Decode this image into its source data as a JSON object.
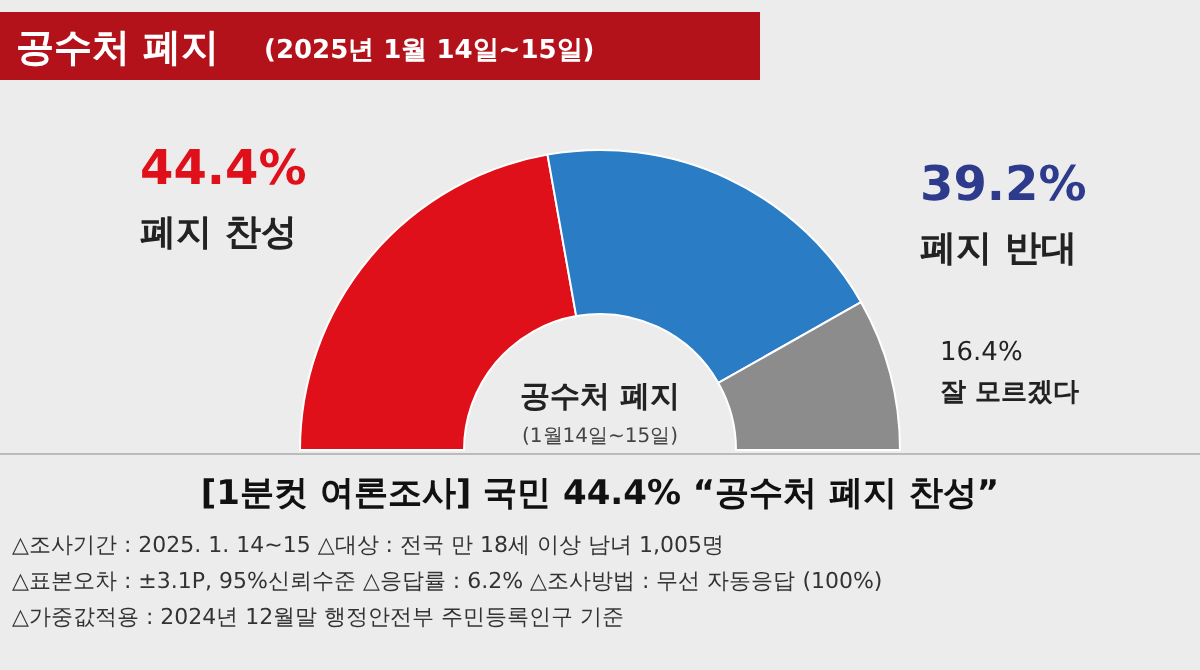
{
  "chart_data": {
    "type": "donut",
    "title": "공수처 폐지",
    "subtitle": "(2025년 1월 14일~15일)",
    "categories": [
      "폐지 찬성",
      "폐지 반대",
      "잘 모르겠다"
    ],
    "values": [
      44.4,
      39.2,
      16.4
    ],
    "value_labels": [
      "44.4%",
      "39.2%",
      "16.4%"
    ],
    "colors": [
      "#e0101a",
      "#2a7cc4",
      "#8c8c8c"
    ],
    "annotations": [
      "공수처 폐지",
      "(1월14일~15일)",
      "[1분컷 여론조사] 국민 44.4% “공수처 폐지 찬성”",
      "△조사기간 : 2025. 1. 14~15   △대상 : 전국 만 18세 이상 남녀 1,005명",
      "△표본오차 : ±3.1P, 95%신뢰수준   △응답률 : 6.2%   △조사방법 : 무선 자동응답 (100%)",
      "△가중값적용 : 2024년 12월말 행정안전부 주민등록인구 기준"
    ]
  }
}
